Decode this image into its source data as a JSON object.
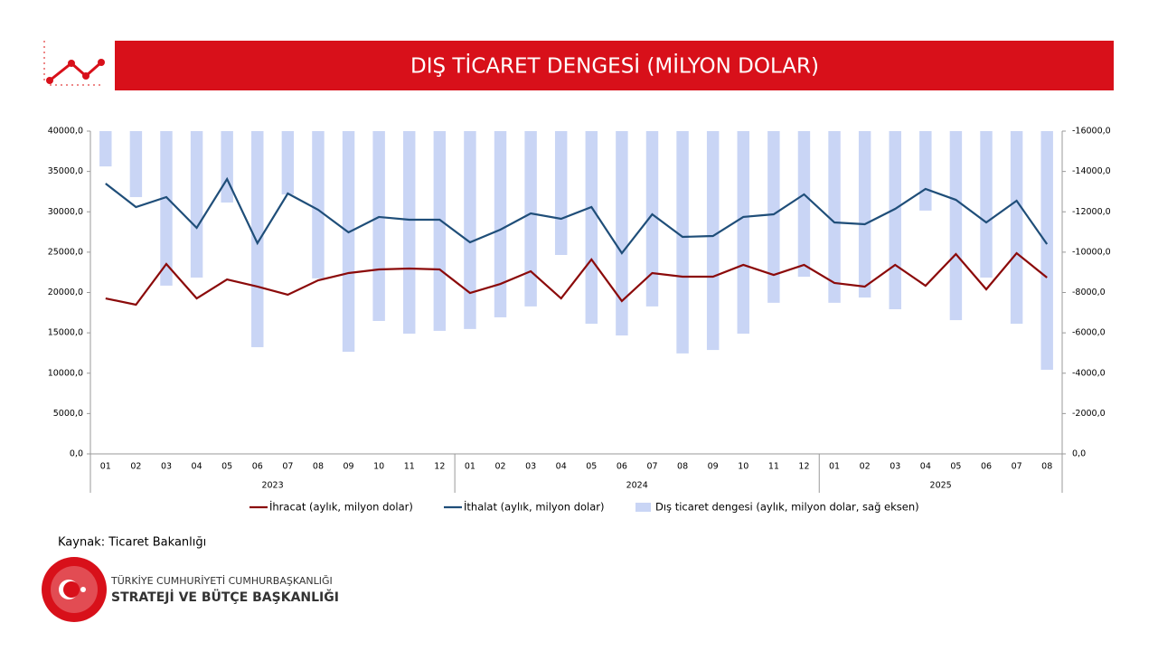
{
  "header": {
    "title": "DIŞ TİCARET DENGESİ (MİLYON DOLAR)"
  },
  "chart_data": {
    "type": "combo",
    "groups": [
      {
        "label": "2023",
        "categories": [
          "01",
          "02",
          "03",
          "04",
          "05",
          "06",
          "07",
          "08",
          "09",
          "10",
          "11",
          "12"
        ]
      },
      {
        "label": "2024",
        "categories": [
          "01",
          "02",
          "03",
          "04",
          "05",
          "06",
          "07",
          "08",
          "09",
          "10",
          "11",
          "12"
        ]
      },
      {
        "label": "2025",
        "categories": [
          "01",
          "02",
          "03",
          "04",
          "05",
          "06",
          "07",
          "08"
        ]
      }
    ],
    "series": [
      {
        "name": "İhracat (aylık, milyon dolar)",
        "type": "line",
        "color": "#8b0a0a",
        "values": [
          19270,
          18490,
          23530,
          19270,
          21620,
          20730,
          19720,
          21510,
          22410,
          22860,
          22970,
          22860,
          19940,
          21060,
          22630,
          19270,
          24090,
          18940,
          22410,
          21960,
          21960,
          23420,
          22180,
          23420,
          21180,
          20730,
          23420,
          20840,
          24760,
          20390,
          24870,
          21850
        ]
      },
      {
        "name": "İthalat (aylık, milyon dolar)",
        "type": "line",
        "color": "#1f4e79",
        "values": [
          33500,
          30590,
          31820,
          28010,
          34060,
          26110,
          32270,
          30250,
          27450,
          29360,
          29020,
          29020,
          26220,
          27790,
          29800,
          29130,
          30590,
          24870,
          29690,
          26890,
          27000,
          29360,
          29690,
          32160,
          28680,
          28460,
          30360,
          32830,
          31480,
          28680,
          31370,
          25990
        ]
      },
      {
        "name": "Dış ticaret dengesi (aylık, milyon dolar, sağ eksen)",
        "type": "bar",
        "axis": "y2",
        "color": "#c9d5f5",
        "values": [
          -14250,
          -12730,
          -8340,
          -8740,
          -12460,
          -5290,
          -12860,
          -8700,
          -5060,
          -6590,
          -5960,
          -6100,
          -6190,
          -6770,
          -7310,
          -9860,
          -6450,
          -5870,
          -7310,
          -4980,
          -5150,
          -5960,
          -7490,
          -8780,
          -7490,
          -7750,
          -7170,
          -12060,
          -6630,
          -8740,
          -6450,
          -4170
        ]
      }
    ],
    "ylim": [
      0,
      40000
    ],
    "yticks": [
      {
        "value": 0,
        "label": "0,0"
      },
      {
        "value": 5000,
        "label": "5000,0"
      },
      {
        "value": 10000,
        "label": "10000,0"
      },
      {
        "value": 15000,
        "label": "15000,0"
      },
      {
        "value": 20000,
        "label": "20000,0"
      },
      {
        "value": 25000,
        "label": "25000,0"
      },
      {
        "value": 30000,
        "label": "30000,0"
      },
      {
        "value": 35000,
        "label": "35000,0"
      },
      {
        "value": 40000,
        "label": "40000,0"
      }
    ],
    "y2lim": [
      0,
      -16000
    ],
    "y2ticks": [
      {
        "value": 0,
        "label": "0,0"
      },
      {
        "value": -2000,
        "label": "-2000,0"
      },
      {
        "value": -4000,
        "label": "-4000,0"
      },
      {
        "value": -6000,
        "label": "-6000,0"
      },
      {
        "value": -8000,
        "label": "-8000,0"
      },
      {
        "value": -10000,
        "label": "-10000,0"
      },
      {
        "value": -12000,
        "label": "-12000,0"
      },
      {
        "value": -14000,
        "label": "-14000,0"
      },
      {
        "value": -16000,
        "label": "-16000,0"
      }
    ],
    "legend": "bottom"
  },
  "footer": {
    "source": "Kaynak: Ticaret Bakanlığı",
    "org_line1": "TÜRKİYE CUMHURİYETİ CUMHURBAŞKANLIĞI",
    "org_line2": "STRATEJİ VE BÜTÇE BAŞKANLIĞI"
  }
}
